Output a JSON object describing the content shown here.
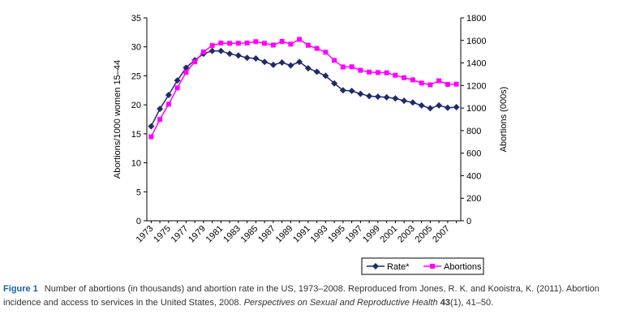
{
  "chart_data": {
    "type": "line",
    "categories": [
      "1973",
      null,
      "1975",
      null,
      "1977",
      null,
      "1979",
      null,
      "1981",
      null,
      "1983",
      null,
      "1985",
      null,
      "1987",
      null,
      "1989",
      null,
      "1991",
      null,
      "1993",
      null,
      "1995",
      null,
      "1997",
      null,
      "1999",
      null,
      "2001",
      null,
      "2003",
      null,
      "2005",
      null,
      "2007",
      null
    ],
    "y_label": "Abortions/1000 women 15–44",
    "y2_label": "Abortions (000s)",
    "ylim": [
      0,
      35
    ],
    "yticks": [
      0,
      5,
      10,
      15,
      20,
      25,
      30,
      35
    ],
    "y2lim": [
      0,
      1800
    ],
    "y2ticks": [
      0,
      200,
      400,
      600,
      800,
      1000,
      1200,
      1400,
      1600,
      1800
    ],
    "grid": false,
    "legend": "bottom-right",
    "series": [
      {
        "name": "Rate*",
        "color": "#1f2a6b",
        "marker": "diamond",
        "values": [
          16.3,
          19.3,
          21.7,
          24.2,
          26.4,
          27.7,
          28.8,
          29.3,
          29.3,
          28.8,
          28.5,
          28.1,
          28.0,
          27.4,
          26.9,
          27.3,
          26.8,
          27.4,
          26.3,
          25.7,
          25.0,
          23.7,
          22.5,
          22.4,
          21.9,
          21.5,
          21.4,
          21.3,
          21.1,
          20.7,
          20.4,
          19.9,
          19.4,
          19.9,
          19.5,
          19.6
        ]
      },
      {
        "name": "Abortions",
        "color": "#ff00ff",
        "marker": "square",
        "axis": "y2",
        "values": [
          745,
          899,
          1034,
          1179,
          1317,
          1410,
          1498,
          1554,
          1577,
          1574,
          1575,
          1577,
          1589,
          1574,
          1559,
          1591,
          1567,
          1609,
          1557,
          1529,
          1495,
          1423,
          1364,
          1366,
          1335,
          1319,
          1315,
          1313,
          1291,
          1269,
          1250,
          1222,
          1206,
          1242,
          1210,
          1212
        ]
      }
    ]
  },
  "caption": {
    "label": "Figure 1",
    "text": "Number of abortions (in thousands) and abortion rate in the US, 1973–2008. Reproduced from Jones, R. K. and Kooistra, K. (2011). Abortion incidence and access to services in the United States, 2008.",
    "journal": "Perspectives on Sexual and Reproductive Health",
    "volume": "43",
    "rest": "(1), 41–50."
  }
}
